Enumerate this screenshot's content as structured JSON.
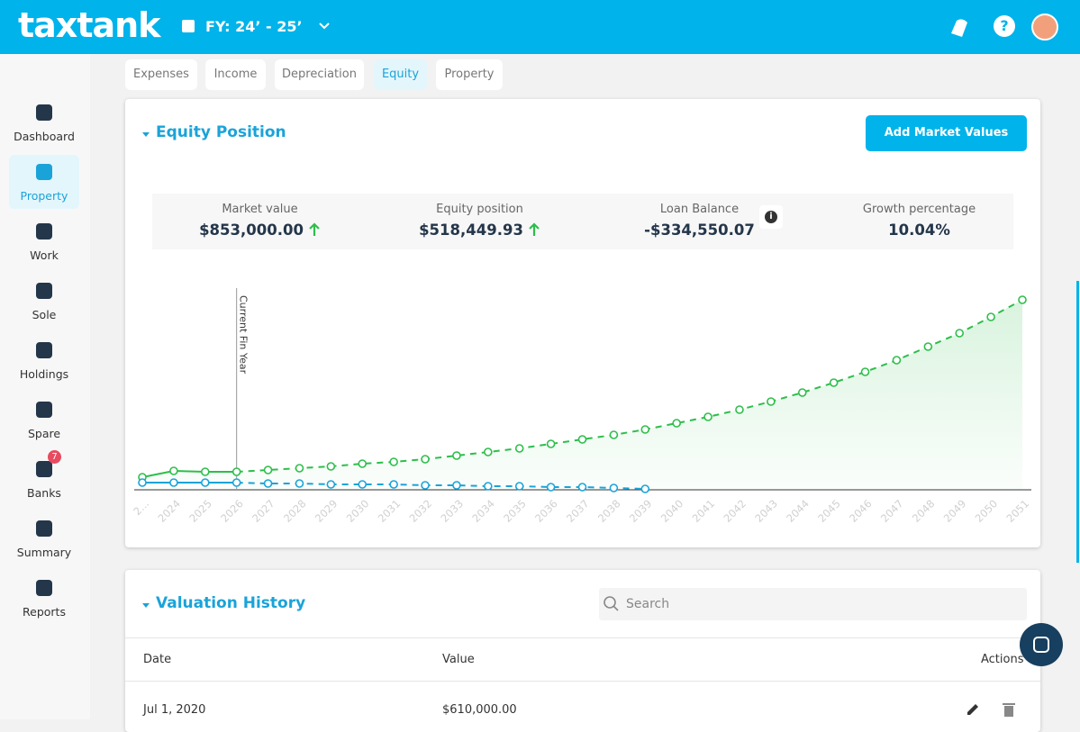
{
  "header": {
    "logo": "taxtank",
    "fiscal_year": "FY: 24’ - 25’"
  },
  "sidebar": [
    {
      "label": "Dashboard"
    },
    {
      "label": "Property"
    },
    {
      "label": "Work"
    },
    {
      "label": "Sole"
    },
    {
      "label": "Holdings"
    },
    {
      "label": "Spare"
    },
    {
      "label": "Banks",
      "badge": "7"
    },
    {
      "label": "Summary"
    },
    {
      "label": "Reports"
    }
  ],
  "tabs": [
    "Expenses",
    "Income",
    "Depreciation",
    "Equity",
    "Property"
  ],
  "equity": {
    "title": "Equity Position",
    "button": "Add Market Values",
    "stats": [
      {
        "label": "Market value",
        "value": "$853,000.00"
      },
      {
        "label": "Equity position",
        "value": "$518,449.93"
      },
      {
        "label": "Loan Balance",
        "value": "-$334,550.07"
      },
      {
        "label": "Growth percentage",
        "value": "10.04%"
      }
    ]
  },
  "chart_data": {
    "type": "line",
    "categories": [
      "2...",
      "2024",
      "2025",
      "2026",
      "2027",
      "2028",
      "2029",
      "2030",
      "2031",
      "2032",
      "2033",
      "2034",
      "2035",
      "2036",
      "2037",
      "2038",
      "2039",
      "2040",
      "2041",
      "2042",
      "2043",
      "2044",
      "2045",
      "2046",
      "2047",
      "2048",
      "2049",
      "2050",
      "2051"
    ],
    "series": [
      {
        "color": "#2dbe4b",
        "values": [
          560000,
          840000,
          800000,
          800000,
          880000,
          960000,
          1040000,
          1160000,
          1240000,
          1360000,
          1520000,
          1680000,
          1840000,
          2040000,
          2240000,
          2440000,
          2680000,
          2960000,
          3240000,
          3560000,
          3920000,
          4320000,
          4760000,
          5240000,
          5760000,
          6360000,
          6960000,
          7680000,
          8440000
        ]
      },
      {
        "color": "#1aa3d9",
        "values": [
          320000,
          320000,
          320000,
          320000,
          280000,
          280000,
          240000,
          240000,
          240000,
          200000,
          200000,
          160000,
          160000,
          120000,
          120000,
          80000,
          40000,
          null,
          null,
          null,
          null,
          null,
          null,
          null,
          null,
          null,
          null,
          null,
          null
        ]
      }
    ],
    "ylim": [
      0,
      10000000
    ],
    "annotations": [
      {
        "text": "Current Fin Year",
        "x": "2026"
      }
    ]
  },
  "history": {
    "title": "Valuation History",
    "search": "Search",
    "columns": [
      "Date",
      "Value",
      "Actions"
    ],
    "rows": [
      [
        "Jul 1, 2020",
        "$610,000.00"
      ]
    ]
  }
}
